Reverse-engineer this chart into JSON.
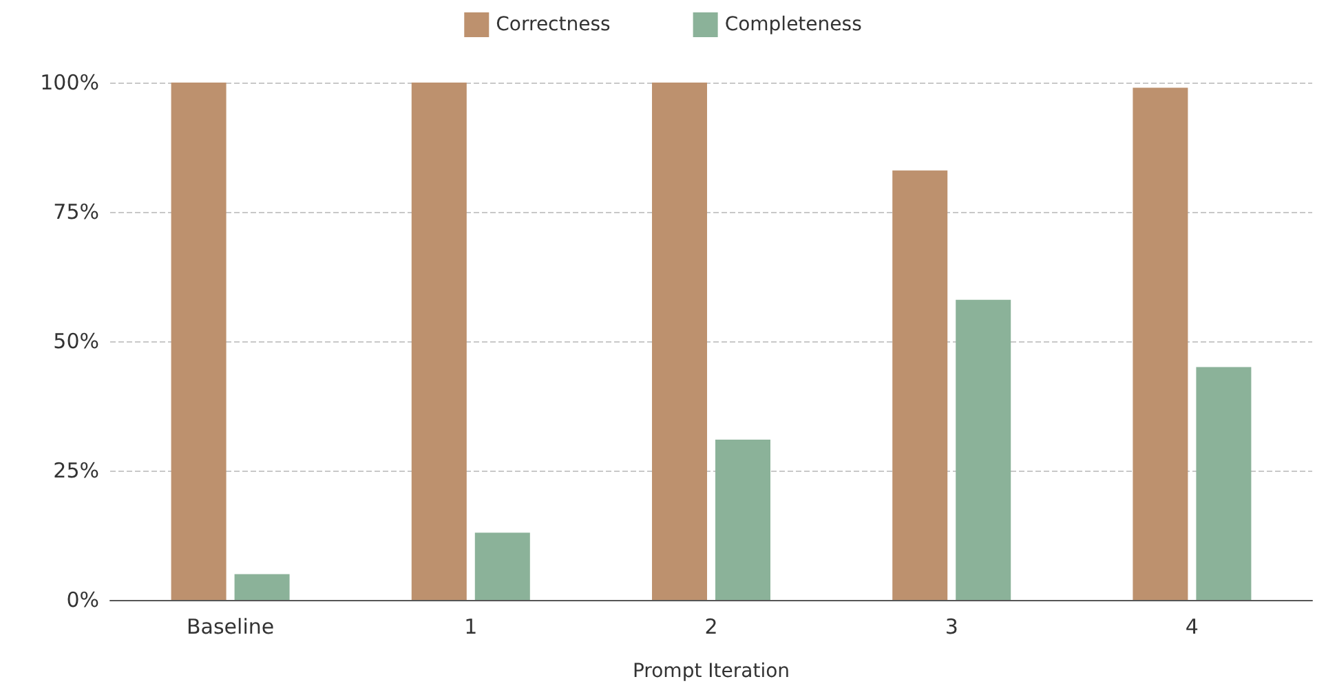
{
  "chart_data": {
    "type": "bar",
    "xlabel": "Prompt Iteration",
    "categories": [
      "Baseline",
      "1",
      "2",
      "3",
      "4"
    ],
    "series": [
      {
        "name": "Correctness",
        "color": "#bd916e",
        "values": [
          100,
          100,
          100,
          83,
          99
        ]
      },
      {
        "name": "Completeness",
        "color": "#8bb299",
        "values": [
          5,
          13,
          31,
          58,
          45
        ]
      }
    ],
    "ylim": [
      0,
      100
    ],
    "yticks": [
      {
        "value": 0,
        "label": "0%"
      },
      {
        "value": 25,
        "label": "25%"
      },
      {
        "value": 50,
        "label": "50%"
      },
      {
        "value": 75,
        "label": "75%"
      },
      {
        "value": 100,
        "label": "100%"
      }
    ],
    "grid": "y",
    "legend": "top"
  }
}
